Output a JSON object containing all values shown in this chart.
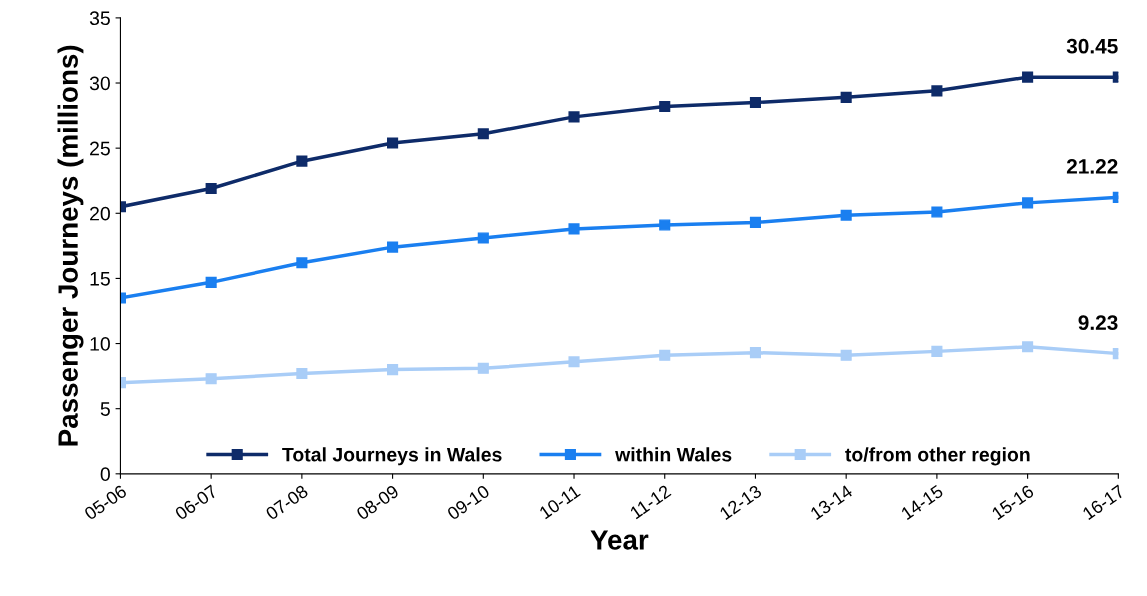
{
  "chart_data": {
    "type": "line",
    "xlabel": "Year",
    "ylabel": "Passenger Journeys (millions)",
    "categories": [
      "05-06",
      "06-07",
      "07-08",
      "08-09",
      "09-10",
      "10-11",
      "11-12",
      "12-13",
      "13-14",
      "14-15",
      "15-16",
      "16-17"
    ],
    "series": [
      {
        "name": "Total Journeys in Wales",
        "color": "#0e2b69",
        "values": [
          20.5,
          21.9,
          24.0,
          25.4,
          26.1,
          27.4,
          28.2,
          28.5,
          28.9,
          29.4,
          30.45,
          30.45
        ],
        "value_labels": [
          null,
          null,
          null,
          null,
          null,
          null,
          null,
          null,
          null,
          null,
          null,
          "30.45"
        ]
      },
      {
        "name": "within Wales",
        "color": "#1a7ff0",
        "values": [
          13.5,
          14.7,
          16.2,
          17.4,
          18.1,
          18.8,
          19.1,
          19.3,
          19.85,
          20.1,
          20.8,
          21.22
        ],
        "value_labels": [
          null,
          null,
          null,
          null,
          null,
          null,
          null,
          null,
          null,
          null,
          null,
          "21.22"
        ]
      },
      {
        "name": "to/from other region",
        "color": "#a9cdf7",
        "values": [
          7.0,
          7.3,
          7.7,
          8.0,
          8.1,
          8.6,
          9.1,
          9.3,
          9.1,
          9.4,
          9.75,
          9.23
        ],
        "value_labels": [
          null,
          null,
          null,
          null,
          null,
          null,
          null,
          null,
          null,
          null,
          null,
          "9.23"
        ]
      }
    ],
    "ylim": [
      0,
      35
    ],
    "yticks": [
      0,
      5,
      10,
      15,
      20,
      25,
      30,
      35
    ],
    "grid": false,
    "legend": "bottom",
    "marker": "square",
    "line_style": "solid"
  }
}
